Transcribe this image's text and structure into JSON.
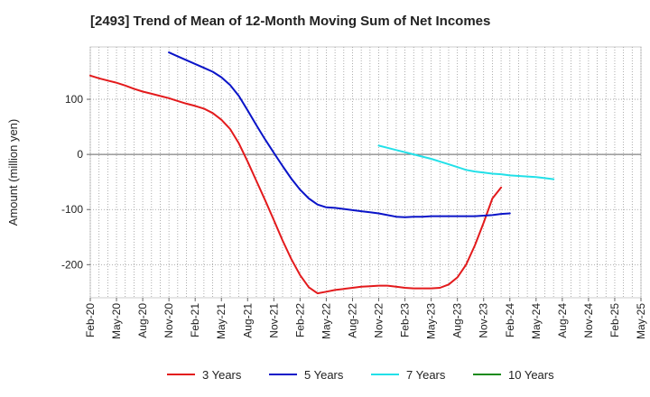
{
  "chart_data": {
    "type": "line",
    "title": "[2493]  Trend of Mean of 12-Month Moving Sum of Net Incomes",
    "xlabel": "",
    "ylabel": "Amount (million yen)",
    "x_ticks": [
      "Feb-20",
      "May-20",
      "Aug-20",
      "Nov-20",
      "Feb-21",
      "May-21",
      "Aug-21",
      "Nov-21",
      "Feb-22",
      "May-22",
      "Aug-22",
      "Nov-22",
      "Feb-23",
      "May-23",
      "Aug-23",
      "Nov-23",
      "Feb-24",
      "May-24",
      "Aug-24",
      "Nov-24",
      "Feb-25",
      "May-25"
    ],
    "y_ticks": [
      100,
      0,
      -100,
      -200
    ],
    "ylim": [
      -260,
      195
    ],
    "grid": true,
    "legend_position": "bottom",
    "series": [
      {
        "name": "3 Years",
        "color": "#e31a1c",
        "start_index": 0,
        "values": [
          143,
          138,
          134,
          130,
          125,
          119,
          114,
          110,
          106,
          102,
          97,
          92,
          88,
          83,
          75,
          63,
          46,
          20,
          -13,
          -48,
          -83,
          -119,
          -156,
          -190,
          -219,
          -241,
          -252,
          -249,
          -246,
          -244,
          -242,
          -240,
          -239,
          -238,
          -238,
          -240,
          -242,
          -243,
          -243,
          -243,
          -242,
          -236,
          -223,
          -200,
          -165,
          -124,
          -80,
          -60
        ]
      },
      {
        "name": "5 Years",
        "color": "#0a14c8",
        "start_index": 9,
        "values": [
          185,
          178,
          171,
          164,
          157,
          150,
          140,
          126,
          106,
          80,
          53,
          27,
          3,
          -21,
          -44,
          -64,
          -80,
          -91,
          -96,
          -97,
          -99,
          -101,
          -103,
          -105,
          -107,
          -110,
          -113,
          -114,
          -113,
          -113,
          -112,
          -112,
          -112,
          -112,
          -112,
          -112,
          -111,
          -110,
          -108,
          -107
        ]
      },
      {
        "name": "7 Years",
        "color": "#22e0e8",
        "start_index": 33,
        "values": [
          16,
          12,
          8,
          4,
          0,
          -4,
          -8,
          -13,
          -18,
          -23,
          -28,
          -31,
          -33,
          -35,
          -36,
          -38,
          -39,
          -40,
          -41,
          -43,
          -45
        ]
      },
      {
        "name": "10 Years",
        "color": "#1a8a1a",
        "start_index": 0,
        "values": []
      }
    ]
  }
}
